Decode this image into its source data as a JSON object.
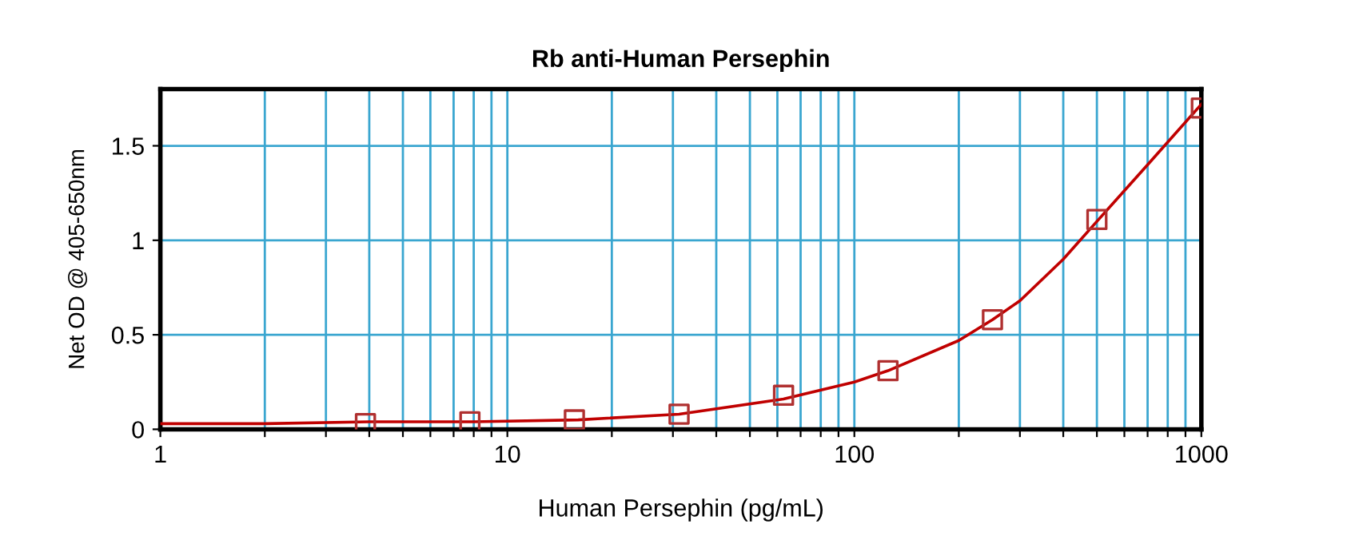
{
  "chart_data": {
    "type": "scatter",
    "title": "Rb anti-Human Persephin",
    "xlabel": "Human Persephin (pg/mL)",
    "ylabel": "Net OD @ 405-650nm",
    "log": "x",
    "xlim": [
      1,
      1000
    ],
    "ylim": [
      0,
      1.8
    ],
    "xticks": [
      1,
      {
        "value": 2,
        "label": null
      },
      {
        "value": 3,
        "label": null
      },
      {
        "value": 4,
        "label": null
      },
      {
        "value": 5,
        "label": null
      },
      {
        "value": 6,
        "label": null
      },
      {
        "value": 7,
        "label": null
      },
      {
        "value": 8,
        "label": null
      },
      {
        "value": 9,
        "label": null
      },
      10,
      {
        "value": 20,
        "label": null
      },
      {
        "value": 30,
        "label": null
      },
      {
        "value": 40,
        "label": null
      },
      {
        "value": 50,
        "label": null
      },
      {
        "value": 60,
        "label": null
      },
      {
        "value": 70,
        "label": null
      },
      {
        "value": 80,
        "label": null
      },
      {
        "value": 90,
        "label": null
      },
      100,
      {
        "value": 200,
        "label": null
      },
      {
        "value": 300,
        "label": null
      },
      {
        "value": 400,
        "label": null
      },
      {
        "value": 500,
        "label": null
      },
      {
        "value": 600,
        "label": null
      },
      {
        "value": 700,
        "label": null
      },
      {
        "value": 800,
        "label": null
      },
      {
        "value": 900,
        "label": null
      },
      1000
    ],
    "yticks": [
      0,
      0.5,
      1,
      1.5
    ],
    "grid": true,
    "series": [
      {
        "type": "line",
        "color": "#c00000",
        "marker": "none",
        "line_style": "solid",
        "x": [
          1,
          2,
          4,
          8,
          16,
          31.25,
          62.5,
          100,
          125,
          200,
          250,
          300,
          400,
          500,
          700,
          1000
        ],
        "values": [
          0.03,
          0.03,
          0.04,
          0.04,
          0.05,
          0.08,
          0.16,
          0.25,
          0.31,
          0.47,
          0.58,
          0.68,
          0.9,
          1.1,
          1.4,
          1.72
        ]
      },
      {
        "color": "#b03030",
        "marker": "square",
        "x": [
          3.9,
          7.8,
          15.6,
          31.25,
          62.5,
          125,
          250,
          500,
          1000
        ],
        "values": [
          0.03,
          0.04,
          0.05,
          0.08,
          0.18,
          0.31,
          0.58,
          1.11,
          1.7
        ]
      }
    ]
  }
}
